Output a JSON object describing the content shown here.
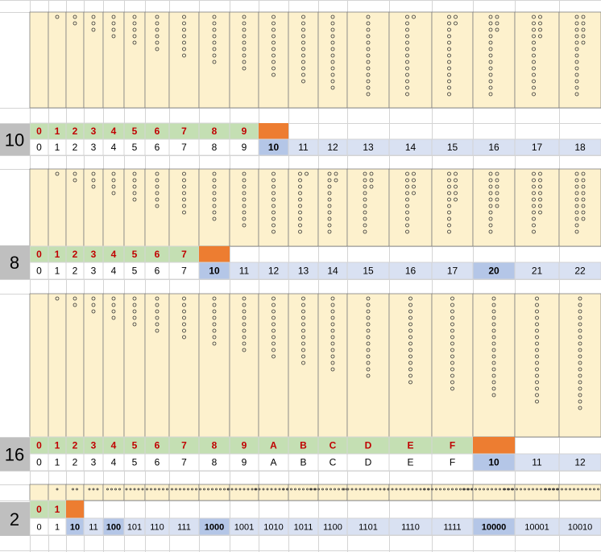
{
  "colors": {
    "cream": "#fdf1cd",
    "green": "#c4dfb3",
    "orange": "#ed7d31",
    "blue": "#d9e1f2",
    "blue_bold": "#b4c6e7",
    "gray": "#bfbfbf",
    "grid": "#d4d4d4",
    "dark": "#505050",
    "red": "#c00000"
  },
  "systems": [
    {
      "base_label": "10",
      "digits": [
        "0",
        "1",
        "2",
        "3",
        "4",
        "5",
        "6",
        "7",
        "8",
        "9"
      ],
      "counts": [
        "0",
        "1",
        "2",
        "3",
        "4",
        "5",
        "6",
        "7",
        "8",
        "9",
        "10",
        "11",
        "12",
        "13",
        "14",
        "15",
        "16",
        "17",
        "18"
      ],
      "bold_count": "10"
    },
    {
      "base_label": "8",
      "digits": [
        "0",
        "1",
        "2",
        "3",
        "4",
        "5",
        "6",
        "7"
      ],
      "counts": [
        "0",
        "1",
        "2",
        "3",
        "4",
        "5",
        "6",
        "7",
        "10",
        "11",
        "12",
        "13",
        "14",
        "15",
        "16",
        "17",
        "20",
        "21",
        "22"
      ],
      "bold_count": "10,20"
    },
    {
      "base_label": "16",
      "digits": [
        "0",
        "1",
        "2",
        "3",
        "4",
        "5",
        "6",
        "7",
        "8",
        "9",
        "A",
        "B",
        "C",
        "D",
        "E",
        "F"
      ],
      "counts": [
        "0",
        "1",
        "2",
        "3",
        "4",
        "5",
        "6",
        "7",
        "8",
        "9",
        "A",
        "B",
        "C",
        "D",
        "E",
        "F",
        "10",
        "11",
        "12"
      ],
      "bold_count": "10"
    },
    {
      "base_label": "2",
      "digits": [
        "0",
        "1"
      ],
      "counts": [
        "0",
        "1",
        "10",
        "11",
        "100",
        "101",
        "110",
        "111",
        "1000",
        "1001",
        "1010",
        "1011",
        "1100",
        "1101",
        "1110",
        "1111",
        "10000",
        "10001",
        "10010"
      ],
      "bold_count": "10,100,1000,10000"
    }
  ]
}
